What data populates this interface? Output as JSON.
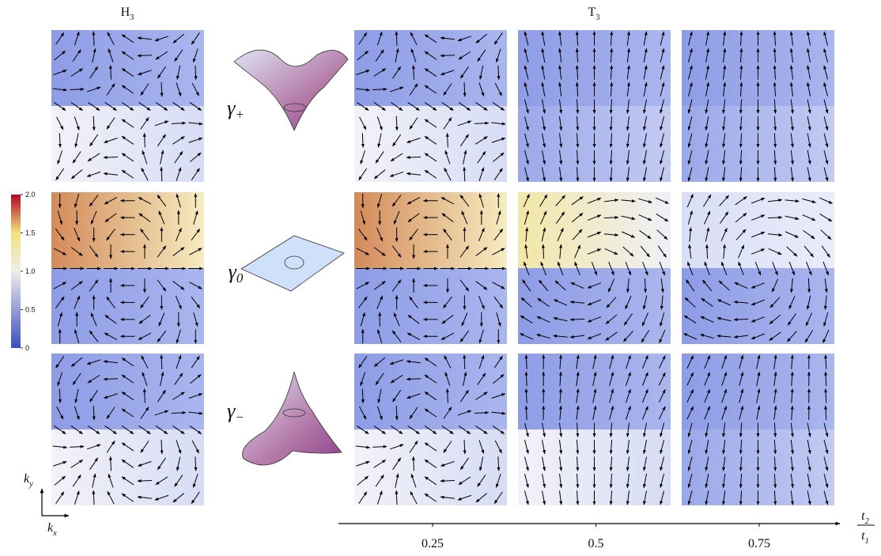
{
  "headers": [
    {
      "base": "H",
      "sub": "3"
    },
    {
      "base": "T",
      "sub": "3"
    }
  ],
  "row_labels": [
    {
      "base": "γ",
      "sub": "+"
    },
    {
      "base": "γ",
      "sub": "0"
    },
    {
      "base": "γ",
      "sub": "−"
    }
  ],
  "colorbar": {
    "ticks": [
      0,
      0.5,
      {
        "value": 1,
        "label": "1.0"
      },
      1.5,
      {
        "value": 2,
        "label": "2.0"
      }
    ]
  },
  "axis": {
    "label": {
      "numerator": {
        "base": "t",
        "sub": "2"
      },
      "denominator": {
        "base": "t",
        "sub": "1"
      }
    },
    "ticks": [
      0.25,
      0.5,
      0.75
    ]
  },
  "k_axes": {
    "y": {
      "base": "k",
      "sub": "y"
    },
    "x": {
      "base": "k",
      "sub": "x"
    }
  }
}
